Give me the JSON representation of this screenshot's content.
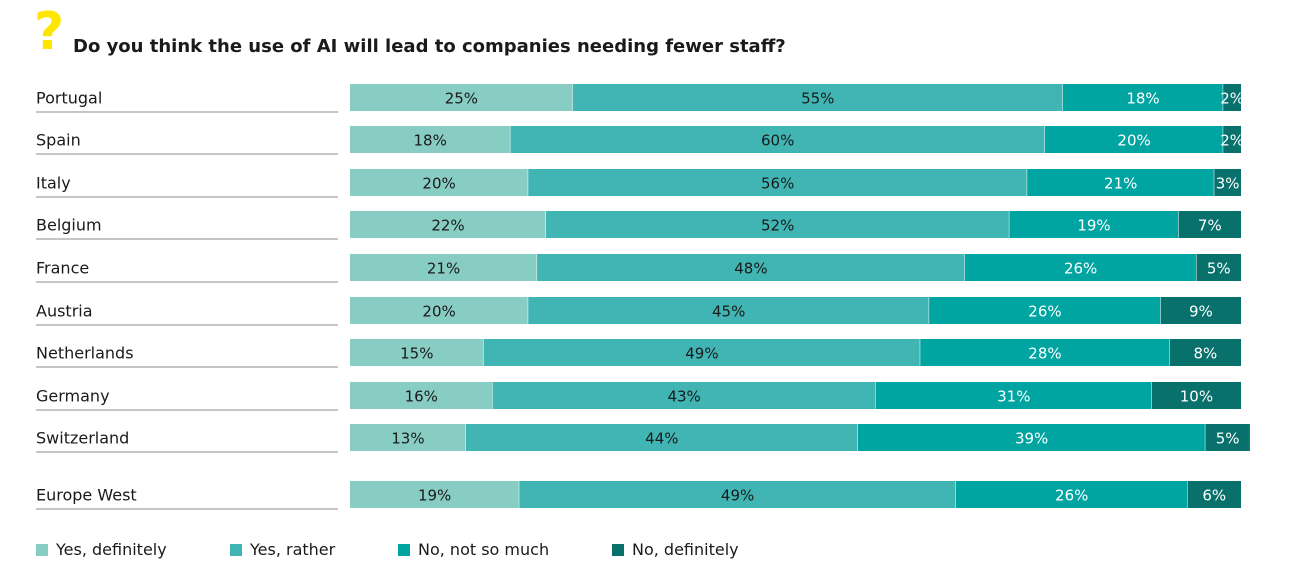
{
  "header": {
    "question_mark": "?",
    "title": "Do you think the use of AI will lead to companies needing fewer staff?"
  },
  "colors": {
    "accent_yellow": "#ffe600",
    "series": [
      "#88cdc4",
      "#40b5b4",
      "#00a5a2",
      "#09716c"
    ],
    "label_dark": "#1a1a1a",
    "label_light": "#ffffff"
  },
  "chart_data": {
    "type": "bar",
    "orientation": "horizontal",
    "stacked": true,
    "title": "Do you think the use of AI will lead to companies needing fewer staff?",
    "xlim": [
      0,
      100
    ],
    "unit": "%",
    "categories": [
      "Portugal",
      "Spain",
      "Italy",
      "Belgium",
      "France",
      "Austria",
      "Netherlands",
      "Germany",
      "Switzerland",
      "Europe West"
    ],
    "series": [
      {
        "name": "Yes, definitely",
        "values": [
          25,
          18,
          20,
          22,
          21,
          20,
          15,
          16,
          13,
          19
        ]
      },
      {
        "name": "Yes, rather",
        "values": [
          55,
          60,
          56,
          52,
          48,
          45,
          49,
          43,
          44,
          49
        ]
      },
      {
        "name": "No, not so much",
        "values": [
          18,
          20,
          21,
          19,
          26,
          26,
          28,
          31,
          39,
          26
        ]
      },
      {
        "name": "No, definitely",
        "values": [
          2,
          2,
          3,
          7,
          5,
          9,
          8,
          10,
          5,
          6
        ]
      }
    ],
    "legend": "bottom"
  }
}
